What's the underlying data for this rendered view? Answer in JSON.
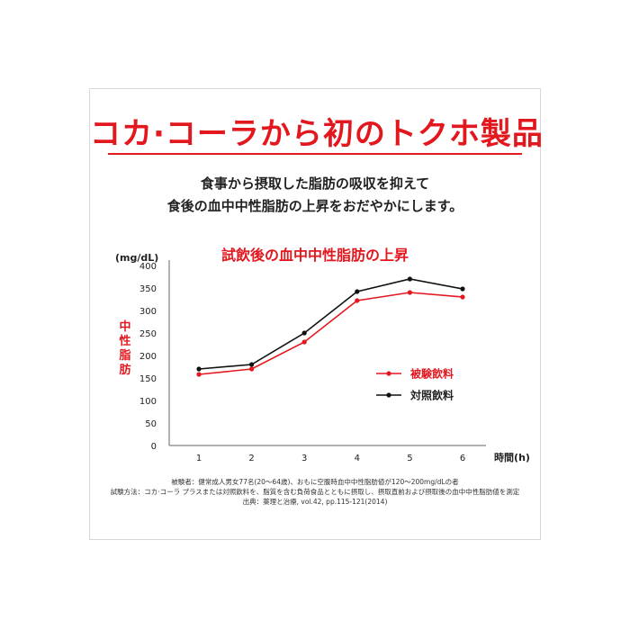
{
  "headline": "コカ·コーラから初のトクホ製品",
  "lead": [
    "食事から摂取した脂肪の吸収を抑えて",
    "食後の血中中性脂肪の上昇をおだやかにします。"
  ],
  "chart_data": {
    "type": "line",
    "title": "試飲後の血中中性脂肪の上昇",
    "unit_label": "(mg/dL)",
    "ylabel": "中性脂肪",
    "xlabel": "時間(h)",
    "x": [
      1,
      2,
      3,
      4,
      5,
      6
    ],
    "ylim": [
      0,
      400
    ],
    "yticks": [
      0,
      50,
      100,
      150,
      200,
      250,
      300,
      350,
      400
    ],
    "grid": false,
    "legend_position": "right-middle",
    "series": [
      {
        "name": "被験飲料",
        "color": "#e3171e",
        "values": [
          158,
          170,
          230,
          322,
          340,
          330
        ]
      },
      {
        "name": "対照飲料",
        "color": "#111111",
        "values": [
          170,
          180,
          250,
          342,
          370,
          348
        ]
      }
    ]
  },
  "footnote": [
    "被験者：健常成人男女77名(20〜64歳)、おもに空腹時血中中性脂肪値が120〜200mg/dLの者",
    "試験方法：コカ·コーラ プラスまたは対照飲料を、脂質を含む負荷食品とともに摂取し、摂取直前および摂取後の血中中性脂肪値を測定",
    "出典：薬理と治療, vol.42, pp.115-121(2014)"
  ]
}
